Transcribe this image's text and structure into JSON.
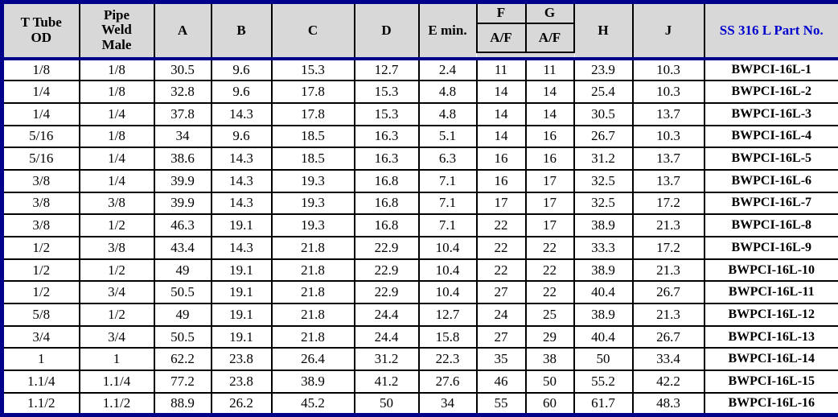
{
  "colors": {
    "outer_border_navy": "#00008B",
    "header_background_gray": "#D8D8D8",
    "part_header_blue": "#0000CD",
    "grid_line_black": "#000000"
  },
  "header": {
    "t_tube_od": "T Tube\nOD",
    "pipe_weld_male": "Pipe\nWeld\nMale",
    "a": "A",
    "b": "B",
    "c": "C",
    "d": "D",
    "e_min": "E min.",
    "f": "F",
    "g": "G",
    "af": "A/F",
    "h": "H",
    "j": "J",
    "part_no": "SS 316 L Part No."
  },
  "table": {
    "column_keys": [
      "t-tube-od",
      "pipe-weld-male",
      "a",
      "b",
      "c",
      "d",
      "e-min",
      "f-af",
      "g-af",
      "h",
      "j",
      "part-no"
    ],
    "rows": [
      [
        "1/8",
        "1/8",
        "30.5",
        "9.6",
        "15.3",
        "12.7",
        "2.4",
        "11",
        "11",
        "23.9",
        "10.3",
        "BWPCI-16L-1"
      ],
      [
        "1/4",
        "1/8",
        "32.8",
        "9.6",
        "17.8",
        "15.3",
        "4.8",
        "14",
        "14",
        "25.4",
        "10.3",
        "BWPCI-16L-2"
      ],
      [
        "1/4",
        "1/4",
        "37.8",
        "14.3",
        "17.8",
        "15.3",
        "4.8",
        "14",
        "14",
        "30.5",
        "13.7",
        "BWPCI-16L-3"
      ],
      [
        "5/16",
        "1/8",
        "34",
        "9.6",
        "18.5",
        "16.3",
        "5.1",
        "14",
        "16",
        "26.7",
        "10.3",
        "BWPCI-16L-4"
      ],
      [
        "5/16",
        "1/4",
        "38.6",
        "14.3",
        "18.5",
        "16.3",
        "6.3",
        "16",
        "16",
        "31.2",
        "13.7",
        "BWPCI-16L-5"
      ],
      [
        "3/8",
        "1/4",
        "39.9",
        "14.3",
        "19.3",
        "16.8",
        "7.1",
        "16",
        "17",
        "32.5",
        "13.7",
        "BWPCI-16L-6"
      ],
      [
        "3/8",
        "3/8",
        "39.9",
        "14.3",
        "19.3",
        "16.8",
        "7.1",
        "17",
        "17",
        "32.5",
        "17.2",
        "BWPCI-16L-7"
      ],
      [
        "3/8",
        "1/2",
        "46.3",
        "19.1",
        "19.3",
        "16.8",
        "7.1",
        "22",
        "17",
        "38.9",
        "21.3",
        "BWPCI-16L-8"
      ],
      [
        "1/2",
        "3/8",
        "43.4",
        "14.3",
        "21.8",
        "22.9",
        "10.4",
        "22",
        "22",
        "33.3",
        "17.2",
        "BWPCI-16L-9"
      ],
      [
        "1/2",
        "1/2",
        "49",
        "19.1",
        "21.8",
        "22.9",
        "10.4",
        "22",
        "22",
        "38.9",
        "21.3",
        "BWPCI-16L-10"
      ],
      [
        "1/2",
        "3/4",
        "50.5",
        "19.1",
        "21.8",
        "22.9",
        "10.4",
        "27",
        "22",
        "40.4",
        "26.7",
        "BWPCI-16L-11"
      ],
      [
        "5/8",
        "1/2",
        "49",
        "19.1",
        "21.8",
        "24.4",
        "12.7",
        "24",
        "25",
        "38.9",
        "21.3",
        "BWPCI-16L-12"
      ],
      [
        "3/4",
        "3/4",
        "50.5",
        "19.1",
        "21.8",
        "24.4",
        "15.8",
        "27",
        "29",
        "40.4",
        "26.7",
        "BWPCI-16L-13"
      ],
      [
        "1",
        "1",
        "62.2",
        "23.8",
        "26.4",
        "31.2",
        "22.3",
        "35",
        "38",
        "50",
        "33.4",
        "BWPCI-16L-14"
      ],
      [
        "1.1/4",
        "1.1/4",
        "77.2",
        "23.8",
        "38.9",
        "41.2",
        "27.6",
        "46",
        "50",
        "55.2",
        "42.2",
        "BWPCI-16L-15"
      ],
      [
        "1.1/2",
        "1.1/2",
        "88.9",
        "26.2",
        "45.2",
        "50",
        "34",
        "55",
        "60",
        "61.7",
        "48.3",
        "BWPCI-16L-16"
      ]
    ]
  }
}
